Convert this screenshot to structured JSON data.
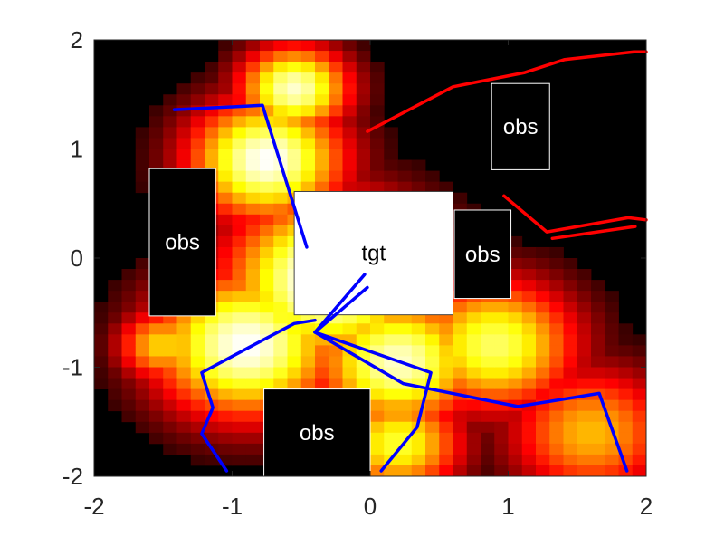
{
  "chart_data": {
    "type": "heatmap",
    "title": "",
    "xlabel": "",
    "ylabel": "",
    "xlim": [
      -2,
      2
    ],
    "ylim": [
      -2,
      2
    ],
    "x_ticks": [
      -2,
      -1,
      0,
      1,
      2
    ],
    "y_ticks": [
      -2,
      -1,
      0,
      1,
      2
    ],
    "x_tick_labels": [
      "-2",
      "-1",
      "0",
      "1",
      "2"
    ],
    "y_tick_labels": [
      "-2",
      "-1",
      "0",
      "1",
      "2"
    ],
    "colormap": "hot",
    "grid": false,
    "legend": "none",
    "heatmap_grid": {
      "x_range": [
        -2,
        2
      ],
      "y_range": [
        -2,
        2
      ],
      "cols": 40,
      "rows": 40,
      "description_values": "intensity 0..1 highest near target region (tgt) and corridor to left obstacle"
    },
    "boxes": [
      {
        "label": "tgt",
        "x": [
          -0.55,
          0.6
        ],
        "y": [
          -0.52,
          0.61
        ],
        "fill": "#ffffff",
        "text_color": "#000000"
      },
      {
        "label": "obs",
        "x": [
          -1.6,
          -1.12
        ],
        "y": [
          -0.53,
          0.82
        ],
        "fill": "#000000",
        "text_color": "#ffffff"
      },
      {
        "label": "obs",
        "x": [
          0.61,
          1.02
        ],
        "y": [
          -0.37,
          0.44
        ],
        "fill": "#000000",
        "text_color": "#ffffff"
      },
      {
        "label": "obs",
        "x": [
          0.88,
          1.3
        ],
        "y": [
          0.81,
          1.6
        ],
        "fill": "#000000",
        "text_color": "#ffffff"
      },
      {
        "label": "obs",
        "x": [
          -0.77,
          0.0
        ],
        "y": [
          -2.0,
          -1.2
        ],
        "fill": "#000000",
        "text_color": "#ffffff"
      }
    ],
    "series": [
      {
        "color": "#0000ff",
        "x": [
          -1.42,
          -0.78,
          -0.46
        ],
        "y": [
          1.36,
          1.4,
          0.1
        ]
      },
      {
        "color": "#0000ff",
        "x": [
          -0.4,
          -0.55,
          -0.88,
          -1.22,
          -1.14,
          -1.22,
          -1.04
        ],
        "y": [
          -0.57,
          -0.6,
          -0.82,
          -1.05,
          -1.37,
          -1.61,
          -1.95
        ]
      },
      {
        "color": "#0000ff",
        "x": [
          -0.04,
          -0.4,
          -0.02
        ],
        "y": [
          -0.15,
          -0.68,
          -0.27
        ]
      },
      {
        "color": "#0000ff",
        "x": [
          -0.4,
          0.44,
          0.34,
          0.08
        ],
        "y": [
          -0.68,
          -1.05,
          -1.55,
          -1.95
        ]
      },
      {
        "color": "#0000ff",
        "x": [
          -0.4,
          0.24,
          1.07,
          1.66,
          1.86
        ],
        "y": [
          -0.68,
          -1.15,
          -1.36,
          -1.24,
          -1.95
        ]
      },
      {
        "color": "#ff0000",
        "x": [
          -0.02,
          0.6,
          1.12,
          1.41,
          1.91,
          2.0
        ],
        "y": [
          1.16,
          1.57,
          1.7,
          1.82,
          1.89,
          1.89
        ]
      },
      {
        "color": "#ff0000",
        "x": [
          0.97,
          1.28,
          1.87,
          2.0
        ],
        "y": [
          0.57,
          0.24,
          0.37,
          0.35
        ]
      },
      {
        "color": "#ff0000",
        "x": [
          1.32,
          1.92
        ],
        "y": [
          0.18,
          0.29
        ]
      }
    ]
  }
}
